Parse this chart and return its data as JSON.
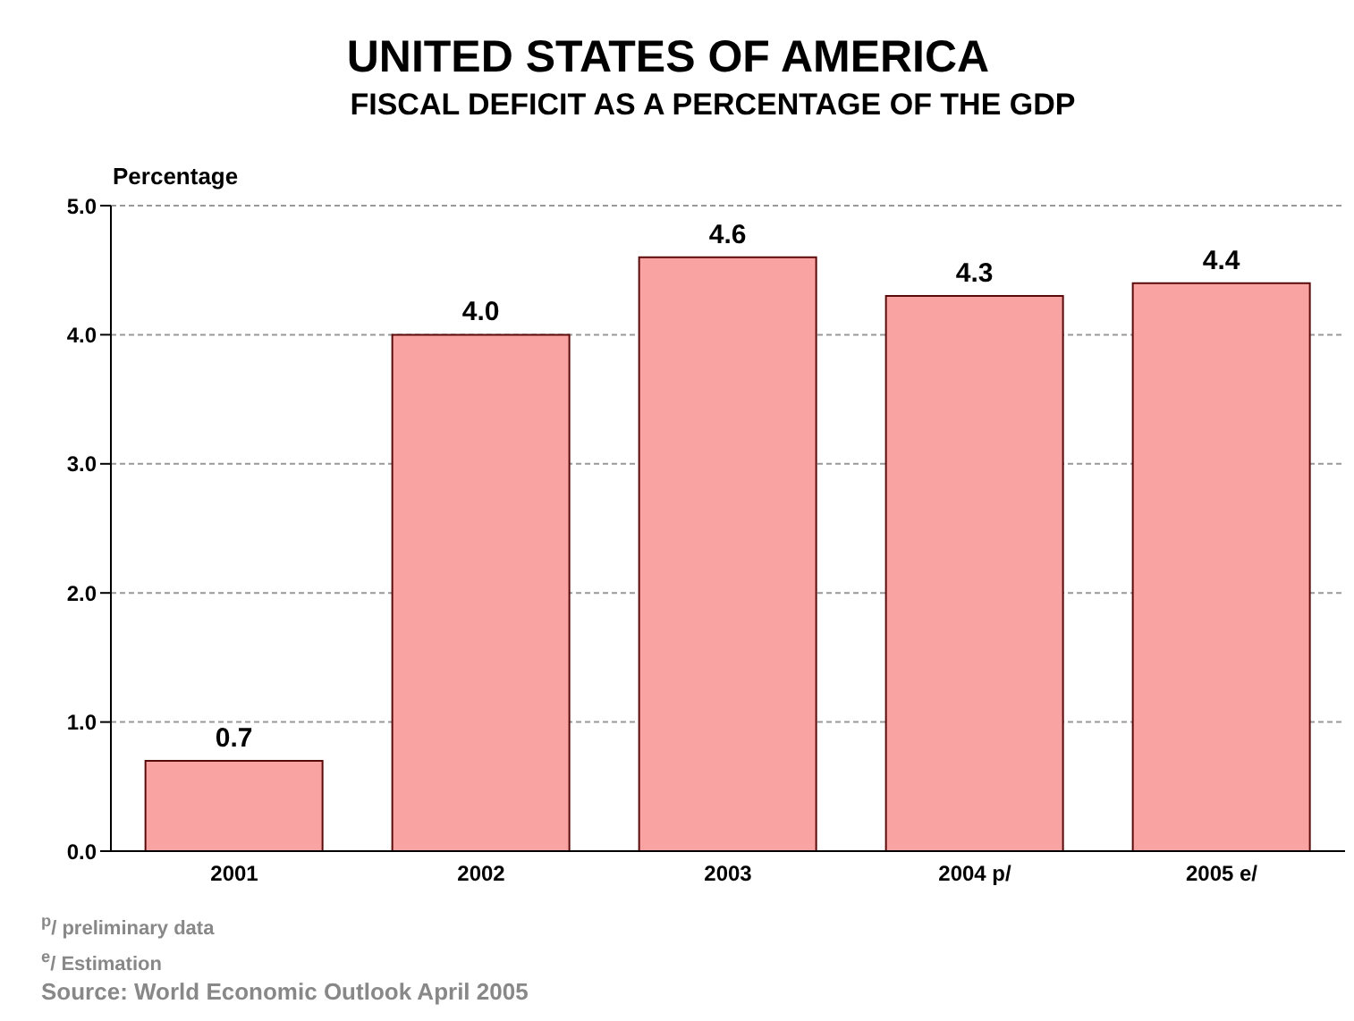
{
  "chart_data": {
    "type": "bar",
    "title": "UNITED STATES OF AMERICA",
    "subtitle": "FISCAL DEFICIT AS A PERCENTAGE OF THE GDP",
    "ylabel": "Percentage",
    "categories": [
      "2001",
      "2002",
      "2003",
      "2004 p/",
      "2005 e/"
    ],
    "values": [
      0.7,
      4.0,
      4.6,
      4.3,
      4.4
    ],
    "value_labels": [
      "0.7",
      "4.0",
      "4.6",
      "4.3",
      "4.4"
    ],
    "color": "#f9a3a3",
    "ylim": [
      0,
      5
    ],
    "yticks": [
      {
        "value": 0,
        "label": "0.0"
      },
      {
        "value": 1,
        "label": "1.0"
      },
      {
        "value": 2,
        "label": "2.0"
      },
      {
        "value": 3,
        "label": "3.0"
      },
      {
        "value": 4,
        "label": "4.0"
      },
      {
        "value": 5,
        "label": "5.0"
      }
    ],
    "grid": "y",
    "legend": false,
    "annotations": [
      "$^{p}$/ preliminary data",
      "$^{e}$/ Estimation",
      "Source: World Economic Outlook April 2005"
    ]
  }
}
